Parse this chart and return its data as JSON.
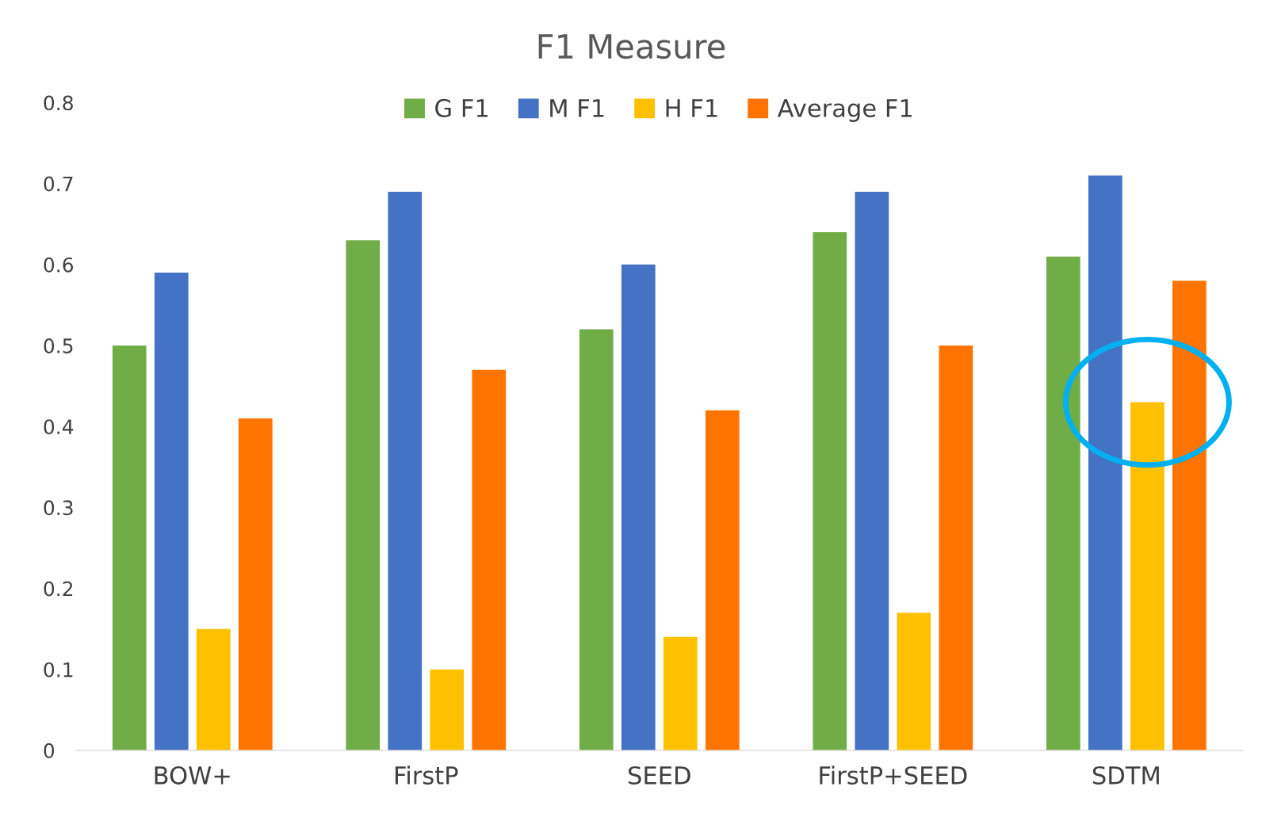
{
  "chart_data": {
    "type": "bar",
    "title": "F1 Measure",
    "categories": [
      "BOW+",
      "FirstP",
      "SEED",
      "FirstP+SEED",
      "SDTM"
    ],
    "series": [
      {
        "name": "G F1",
        "color": "#70ad47",
        "values": [
          0.5,
          0.63,
          0.52,
          0.64,
          0.61
        ]
      },
      {
        "name": "M F1",
        "color": "#4472c4",
        "values": [
          0.59,
          0.69,
          0.6,
          0.69,
          0.71
        ]
      },
      {
        "name": "H F1",
        "color": "#ffc000",
        "values": [
          0.15,
          0.1,
          0.14,
          0.17,
          0.43
        ]
      },
      {
        "name": "Average F1",
        "color": "#ff7300",
        "values": [
          0.41,
          0.47,
          0.42,
          0.5,
          0.58
        ]
      }
    ],
    "ylim": [
      0,
      0.8
    ],
    "yticks": [
      0,
      0.1,
      0.2,
      0.3,
      0.4,
      0.5,
      0.6,
      0.7,
      0.8
    ],
    "grid": false,
    "legend": "top"
  }
}
